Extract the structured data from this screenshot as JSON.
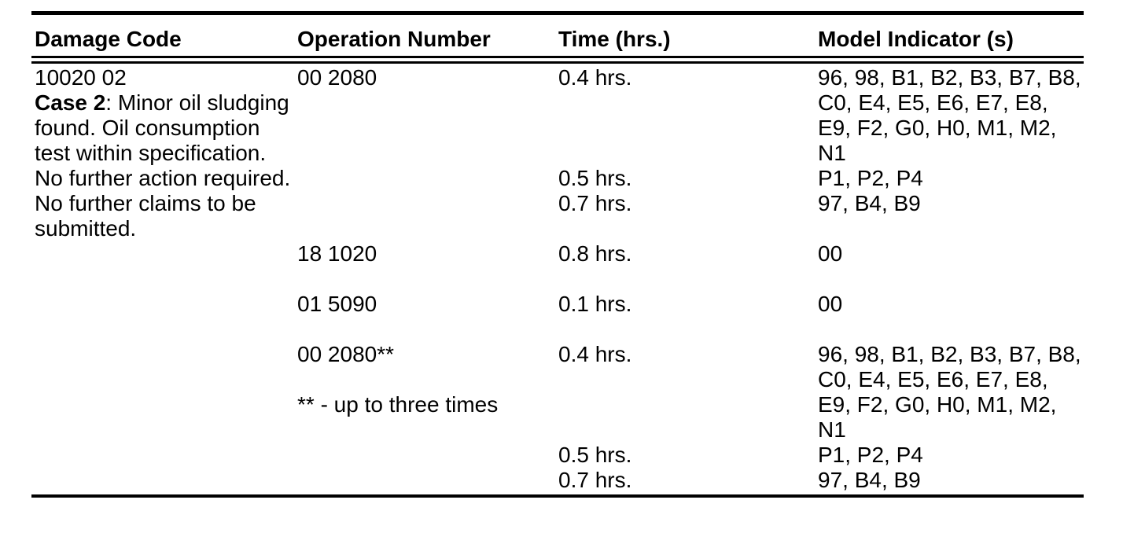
{
  "page": {
    "background_color": "#ffffff",
    "text_color": "#000000",
    "rule_color": "#000000"
  },
  "table": {
    "headers": [
      "Damage Code",
      "Operation Number",
      "Time (hrs.)",
      "Model Indicator (s)"
    ],
    "rows": [
      [
        "10020 02",
        "00 2080",
        "0.4 hrs.",
        "96, 98, B1, B2, B3, B7, B8,"
      ],
      [
        {
          "bold": "Case 2",
          "text": ": Minor oil sludging"
        },
        "",
        "",
        "C0, E4, E5, E6, E7, E8,"
      ],
      [
        "found. Oil consumption",
        "",
        "",
        "E9, F2, G0, H0, M1, M2,"
      ],
      [
        "test within specification.",
        "",
        "",
        "N1"
      ],
      [
        "No further action required.",
        "",
        "0.5 hrs.",
        "P1, P2, P4"
      ],
      [
        "No further claims to be",
        "",
        "0.7 hrs.",
        "97, B4, B9"
      ],
      [
        "submitted.",
        "",
        "",
        ""
      ],
      [
        "",
        "18 1020",
        "0.8 hrs.",
        "00"
      ],
      [
        "",
        "",
        "",
        ""
      ],
      [
        "",
        "01 5090",
        "0.1 hrs.",
        "00"
      ],
      [
        "",
        "",
        "",
        ""
      ],
      [
        "",
        "00 2080**",
        "0.4 hrs.",
        "96, 98, B1, B2, B3, B7, B8,"
      ],
      [
        "",
        "",
        "",
        "C0, E4, E5, E6, E7, E8,"
      ],
      [
        "",
        "** - up to three times",
        "",
        "E9, F2, G0, H0, M1, M2,"
      ],
      [
        "",
        "",
        "",
        "N1"
      ],
      [
        "",
        "",
        "0.5 hrs.",
        "P1, P2, P4"
      ],
      [
        "",
        "",
        "0.7 hrs.",
        "97, B4, B9"
      ]
    ]
  }
}
